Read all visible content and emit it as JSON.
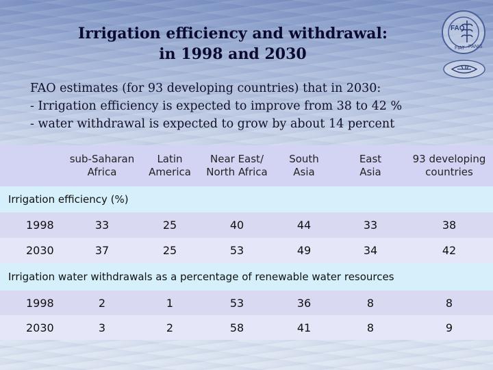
{
  "title": {
    "line1": "Irrigation efficiency and withdrawal:",
    "line2": "in 1998 and 2030"
  },
  "logo": {
    "text_fao": "FAO",
    "text_fiat": "FIAT",
    "text_panis": "PANIS",
    "icon": "fao-logo-icon",
    "secondary_icon": "wheat-emblem-icon"
  },
  "intro": {
    "line1": "FAO estimates (for 93 developing countries) that in 2030:",
    "line2": "- Irrigation efficiency is expected to improve from 38 to 42 %",
    "line3": "- water withdrawal is expected to grow by about 14 percent"
  },
  "table": {
    "columns": [
      {
        "line1": "",
        "line2": ""
      },
      {
        "line1": "sub-Saharan",
        "line2": "Africa"
      },
      {
        "line1": "Latin",
        "line2": "America"
      },
      {
        "line1": "Near East/",
        "line2": "North Africa"
      },
      {
        "line1": "South",
        "line2": "Asia"
      },
      {
        "line1": "East",
        "line2": "Asia"
      },
      {
        "line1": "93 developing",
        "line2": "countries"
      }
    ],
    "section1": {
      "label": "Irrigation efficiency (%)",
      "rows": [
        {
          "year": "1998",
          "values": [
            "33",
            "25",
            "40",
            "44",
            "33",
            "38"
          ]
        },
        {
          "year": "2030",
          "values": [
            "37",
            "25",
            "53",
            "49",
            "34",
            "42"
          ]
        }
      ]
    },
    "section2": {
      "label": "Irrigation water withdrawals as a percentage of renewable water resources",
      "rows": [
        {
          "year": "1998",
          "values": [
            "2",
            "1",
            "53",
            "36",
            "8",
            "8"
          ]
        },
        {
          "year": "2030",
          "values": [
            "3",
            "2",
            "58",
            "41",
            "8",
            "9"
          ]
        }
      ]
    }
  },
  "colors": {
    "header_bg": "#d3d4f4",
    "section_bg": "#d6f0fb",
    "row_bg_dark": "#d9daf2",
    "row_bg_light": "#e5e6f7"
  }
}
